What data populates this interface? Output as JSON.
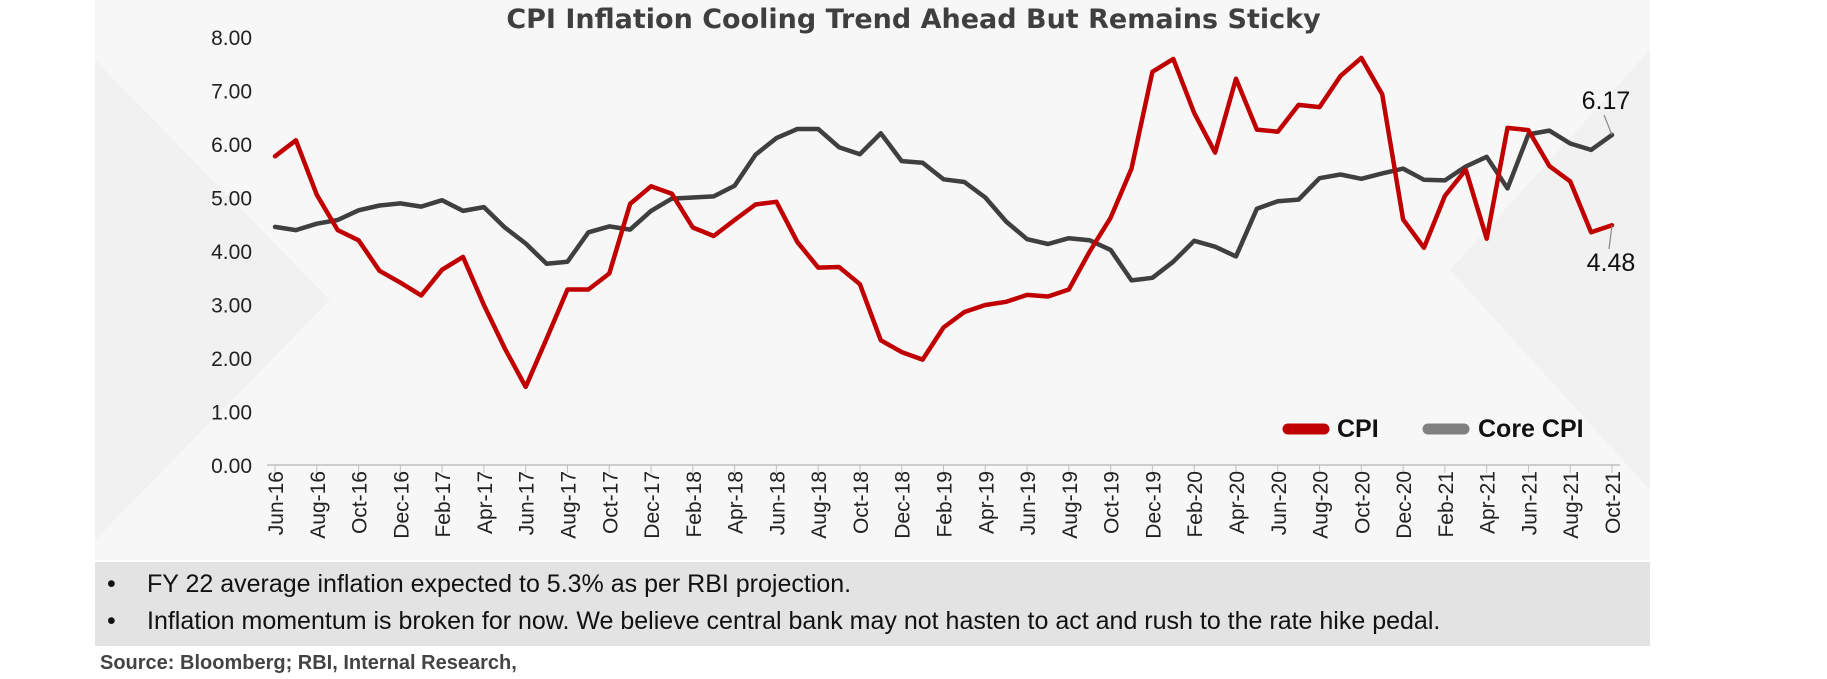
{
  "chart_data": {
    "type": "line",
    "title": "CPI Inflation Cooling Trend Ahead But Remains Sticky",
    "xlabel": "",
    "ylabel": "",
    "ylim": [
      0,
      8
    ],
    "yticks": [
      "0.00",
      "1.00",
      "2.00",
      "3.00",
      "4.00",
      "5.00",
      "6.00",
      "7.00",
      "8.00"
    ],
    "grid": false,
    "legend_position": "bottom-right",
    "x_tick_labels": [
      "Jun-16",
      "Aug-16",
      "Oct-16",
      "Dec-16",
      "Feb-17",
      "Apr-17",
      "Jun-17",
      "Aug-17",
      "Oct-17",
      "Dec-17",
      "Feb-18",
      "Apr-18",
      "Jun-18",
      "Aug-18",
      "Oct-18",
      "Dec-18",
      "Feb-19",
      "Apr-19",
      "Jun-19",
      "Aug-19",
      "Oct-19",
      "Dec-19",
      "Feb-20",
      "Apr-20",
      "Jun-20",
      "Aug-20",
      "Oct-20",
      "Dec-20",
      "Feb-21",
      "Apr-21",
      "Jun-21",
      "Aug-21",
      "Oct-21"
    ],
    "x": [
      "Jun-16",
      "Jul-16",
      "Aug-16",
      "Sep-16",
      "Oct-16",
      "Nov-16",
      "Dec-16",
      "Jan-17",
      "Feb-17",
      "Mar-17",
      "Apr-17",
      "May-17",
      "Jun-17",
      "Jul-17",
      "Aug-17",
      "Sep-17",
      "Oct-17",
      "Nov-17",
      "Dec-17",
      "Jan-18",
      "Feb-18",
      "Mar-18",
      "Apr-18",
      "May-18",
      "Jun-18",
      "Jul-18",
      "Aug-18",
      "Sep-18",
      "Oct-18",
      "Nov-18",
      "Dec-18",
      "Jan-19",
      "Feb-19",
      "Mar-19",
      "Apr-19",
      "May-19",
      "Jun-19",
      "Jul-19",
      "Aug-19",
      "Sep-19",
      "Oct-19",
      "Nov-19",
      "Dec-19",
      "Jan-20",
      "Feb-20",
      "Mar-20",
      "Apr-20",
      "May-20",
      "Jun-20",
      "Jul-20",
      "Aug-20",
      "Sep-20",
      "Oct-20",
      "Nov-20",
      "Dec-20",
      "Jan-21",
      "Feb-21",
      "Mar-21",
      "Apr-21",
      "May-21",
      "Jun-21",
      "Jul-21",
      "Aug-21",
      "Sep-21",
      "Oct-21"
    ],
    "series": [
      {
        "name": "CPI",
        "color": "#c00000",
        "values": [
          5.77,
          6.07,
          5.05,
          4.39,
          4.2,
          3.63,
          3.41,
          3.17,
          3.65,
          3.89,
          2.99,
          2.18,
          1.46,
          2.36,
          3.28,
          3.28,
          3.58,
          4.88,
          5.21,
          5.07,
          4.44,
          4.28,
          4.58,
          4.87,
          4.92,
          4.17,
          3.69,
          3.7,
          3.38,
          2.33,
          2.11,
          1.97,
          2.57,
          2.86,
          2.99,
          3.05,
          3.18,
          3.15,
          3.28,
          3.99,
          4.62,
          5.54,
          7.35,
          7.59,
          6.58,
          5.84,
          7.22,
          6.27,
          6.23,
          6.73,
          6.69,
          7.27,
          7.61,
          6.93,
          4.59,
          4.06,
          5.03,
          5.52,
          4.23,
          6.3,
          6.26,
          5.59,
          5.3,
          4.35,
          4.48
        ]
      },
      {
        "name": "Core CPI",
        "color": "#3f3f3f",
        "values": [
          4.45,
          4.39,
          4.51,
          4.58,
          4.76,
          4.85,
          4.89,
          4.83,
          4.95,
          4.75,
          4.82,
          4.44,
          4.14,
          3.76,
          3.8,
          4.35,
          4.46,
          4.4,
          4.75,
          4.98,
          5.0,
          5.02,
          5.22,
          5.8,
          6.11,
          6.28,
          6.28,
          5.94,
          5.81,
          6.2,
          5.68,
          5.65,
          5.34,
          5.29,
          5.0,
          4.55,
          4.22,
          4.13,
          4.24,
          4.2,
          4.02,
          3.45,
          3.5,
          3.8,
          4.19,
          4.08,
          3.9,
          4.79,
          4.93,
          4.96,
          5.36,
          5.43,
          5.35,
          5.45,
          5.54,
          5.33,
          5.32,
          5.58,
          5.76,
          5.17,
          6.18,
          6.25,
          6.01,
          5.89,
          6.17
        ]
      }
    ],
    "annotations": [
      {
        "text": "6.17",
        "series": "Core CPI",
        "x": "Oct-21"
      },
      {
        "text": "4.48",
        "series": "CPI",
        "x": "Oct-21"
      }
    ]
  },
  "notes": [
    {
      "bullet": "•",
      "text": "FY 22 average inflation expected to 5.3% as per RBI projection."
    },
    {
      "bullet": "•",
      "text": "Inflation momentum is broken for now. We believe central bank may not hasten to act and rush to the rate hike pedal."
    }
  ],
  "source": "Source: Bloomberg; RBI, Internal Research,"
}
